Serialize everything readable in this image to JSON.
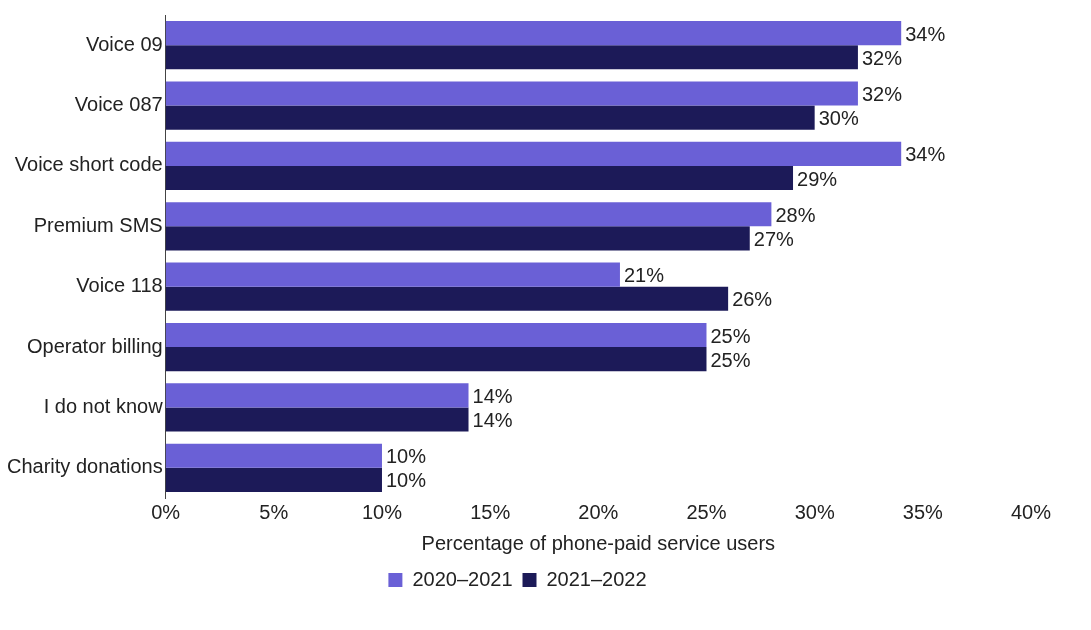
{
  "chart_data": {
    "type": "bar",
    "orientation": "horizontal",
    "xlabel": "Percentage of phone-paid service users",
    "categories": [
      "Voice 09",
      "Voice 087",
      "Voice short code",
      "Premium SMS",
      "Voice 118",
      "Operator billing",
      "I do not know",
      "Charity donations"
    ],
    "series": [
      {
        "name": "2020–2021",
        "color": "#6a60d6",
        "values": [
          34,
          32,
          34,
          28,
          21,
          25,
          14,
          10
        ],
        "value_labels": [
          "34%",
          "32%",
          "34%",
          "28%",
          "21%",
          "25%",
          "14%",
          "10%"
        ]
      },
      {
        "name": "2021–2022",
        "color": "#1c1a58",
        "values": [
          32,
          30,
          29,
          27,
          26,
          25,
          14,
          10
        ],
        "value_labels": [
          "32%",
          "30%",
          "29%",
          "27%",
          "26%",
          "25%",
          "14%",
          "10%"
        ]
      }
    ],
    "xlim": [
      0,
      40
    ],
    "xticks": [
      {
        "value": 0,
        "label": "0%"
      },
      {
        "value": 5,
        "label": "5%"
      },
      {
        "value": 10,
        "label": "10%"
      },
      {
        "value": 15,
        "label": "15%"
      },
      {
        "value": 20,
        "label": "20%"
      },
      {
        "value": 25,
        "label": "25%"
      },
      {
        "value": 30,
        "label": "30%"
      },
      {
        "value": 35,
        "label": "35%"
      },
      {
        "value": 40,
        "label": "40%"
      }
    ],
    "legend": "bottom",
    "grid": false
  }
}
